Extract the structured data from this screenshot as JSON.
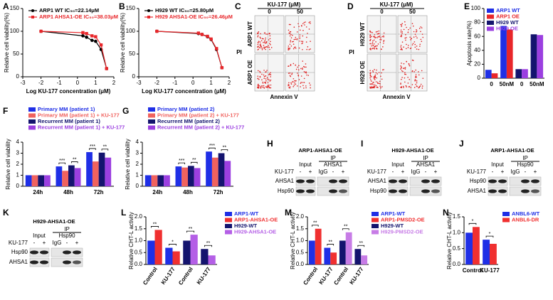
{
  "chart_data": [
    {
      "type": "line",
      "label": "A",
      "xlabel": "Log KU-177 concentration (μM)",
      "ylabel": "Relative cell viability(%)",
      "x": [
        -2,
        0.3,
        0.5,
        0.8,
        1,
        1.3,
        1.6
      ],
      "xlim": [
        -3,
        2
      ],
      "xticks": [
        -3,
        -2,
        -1,
        0,
        1,
        2
      ],
      "ylim": [
        0,
        150
      ],
      "yticks": [
        0,
        50,
        100,
        150
      ],
      "series": [
        {
          "name": "ARP1 WT IC₅₀=22.14μM",
          "color": "#000000",
          "marker": "circle",
          "values": [
            100,
            90,
            87,
            80,
            78,
            60,
            18
          ]
        },
        {
          "name": "ARP1 AHSA1-OE IC₅₀=38.03μM",
          "color": "#e8262a",
          "marker": "square",
          "values": [
            100,
            97,
            95,
            90,
            88,
            70,
            18
          ]
        }
      ]
    },
    {
      "type": "line",
      "label": "B",
      "xlabel": "Log KU-177 concentration (μM)",
      "ylabel": "Relative cell viability(%)",
      "x": [
        -2,
        0.3,
        0.5,
        0.8,
        1,
        1.3,
        1.6
      ],
      "xlim": [
        -3,
        2
      ],
      "xticks": [
        -3,
        -2,
        -1,
        0,
        1,
        2
      ],
      "ylim": [
        0,
        150
      ],
      "yticks": [
        0,
        50,
        100,
        150
      ],
      "series": [
        {
          "name": "H929 WT IC₅₀=25.80μM",
          "color": "#000000",
          "marker": "circle",
          "values": [
            100,
            95,
            93,
            88,
            82,
            60,
            20
          ]
        },
        {
          "name": "H929 AHSA1-OE IC₅₀=26.46μM",
          "color": "#e8262a",
          "marker": "square",
          "values": [
            100,
            96,
            93,
            89,
            83,
            62,
            20
          ]
        }
      ]
    },
    {
      "type": "bar",
      "label": "E",
      "ylabel": "Apoptosis rate(%)",
      "categories": [
        "0",
        "50nM",
        "0",
        "50nM"
      ],
      "ylim": [
        0,
        100
      ],
      "yticks": [
        0,
        20,
        40,
        60,
        80,
        100
      ],
      "series": [
        {
          "name": "ARP1 WT",
          "color": "#1f2fe6",
          "values": [
            12,
            75,
            null,
            null
          ]
        },
        {
          "name": "ARP1 OE",
          "color": "#e8262a",
          "values": [
            7,
            70,
            null,
            null
          ]
        },
        {
          "name": "H929 WT",
          "color": "#14146e",
          "values": [
            null,
            null,
            13,
            63
          ]
        },
        {
          "name": "H929 OE",
          "color": "#9b3fe0",
          "values": [
            null,
            null,
            13,
            62
          ]
        }
      ]
    },
    {
      "type": "bar",
      "label": "F",
      "ylabel": "Relative cell viability",
      "categories": [
        "24h",
        "48h",
        "72h"
      ],
      "ylim": [
        0,
        4
      ],
      "yticks": [
        0,
        1,
        2,
        3,
        4
      ],
      "annotations": [
        "***",
        "**",
        "***",
        "**"
      ],
      "series": [
        {
          "name": "Primary MM (patient 1)",
          "color": "#1f2fe6",
          "values": [
            1,
            1.8,
            3.1
          ]
        },
        {
          "name": "Primary MM (patient 1) + KU-177",
          "color": "#f0625e",
          "values": [
            1,
            1.4,
            2.25
          ]
        },
        {
          "name": "Recurrent MM (patient 1)",
          "color": "#14146e",
          "values": [
            1,
            1.9,
            3.05
          ]
        },
        {
          "name": "Recurrent MM (patient 1) + KU-177",
          "color": "#9b3fe0",
          "values": [
            1,
            1.65,
            2.6
          ]
        }
      ]
    },
    {
      "type": "bar",
      "label": "G",
      "ylabel": "Relative cell viability",
      "categories": [
        "24h",
        "48h",
        "72h"
      ],
      "ylim": [
        0,
        4
      ],
      "yticks": [
        0,
        1,
        2,
        3,
        4
      ],
      "annotations": [
        "***",
        "**",
        "***",
        "**"
      ],
      "series": [
        {
          "name": "Primary MM (patient 2)",
          "color": "#1f2fe6",
          "values": [
            1,
            1.8,
            3.15
          ]
        },
        {
          "name": "Primary MM (patient 2) + KU-177",
          "color": "#f0625e",
          "values": [
            1,
            1.7,
            2.6
          ]
        },
        {
          "name": "Recurrent MM (patient 2)",
          "color": "#14146e",
          "values": [
            1,
            1.85,
            3.0
          ]
        },
        {
          "name": "Recurrent MM (patient 2) + KU-177",
          "color": "#9b3fe0",
          "values": [
            1,
            1.65,
            2.3
          ]
        }
      ]
    },
    {
      "type": "bar",
      "label": "L",
      "ylabel": "Relative CHT-L activity",
      "categories": [
        "Control",
        "KU-177",
        "Control",
        "KU-177"
      ],
      "ylim": [
        0,
        2
      ],
      "yticks": [
        {
          "value": 0,
          "label": "0.0"
        },
        0.5,
        {
          "value": 1,
          "label": "1.0"
        },
        1.5,
        {
          "value": 2,
          "label": "2.0"
        }
      ],
      "annotations": [
        "**",
        "*",
        "**",
        "**"
      ],
      "series": [
        {
          "name": "ARP1-WT",
          "color": "#1f2fe6",
          "values": [
            1.0,
            0.7,
            null,
            null
          ]
        },
        {
          "name": "ARP1-AHSA1-OE",
          "color": "#f03030",
          "values": [
            1.45,
            0.55,
            null,
            null
          ]
        },
        {
          "name": "H929-WT",
          "color": "#14146e",
          "values": [
            null,
            null,
            1.0,
            0.65
          ]
        },
        {
          "name": "H929-AHSA1-OE",
          "color": "#b45fe6",
          "values": [
            null,
            null,
            1.25,
            0.38
          ]
        }
      ]
    },
    {
      "type": "bar",
      "label": "M",
      "ylabel": "Relative CHT-L activity",
      "categories": [
        "Control",
        "KU-177",
        "Control",
        "KU-177"
      ],
      "ylim": [
        0,
        2
      ],
      "yticks": [
        {
          "value": 0,
          "label": "0.0"
        },
        0.5,
        {
          "value": 1,
          "label": "1.0"
        },
        1.5,
        {
          "value": 2,
          "label": "2.0"
        }
      ],
      "annotations": [
        "**",
        "**",
        "**",
        "**"
      ],
      "series": [
        {
          "name": "ARP1-WT",
          "color": "#1f2fe6",
          "values": [
            1.0,
            0.7,
            null,
            null
          ]
        },
        {
          "name": "ARP1-PMSD2-OE",
          "color": "#f03030",
          "values": [
            1.5,
            0.5,
            null,
            null
          ]
        },
        {
          "name": "H929-WT",
          "color": "#14146e",
          "values": [
            null,
            null,
            1.0,
            0.65
          ]
        },
        {
          "name": "H929-PMSD2-OE",
          "color": "#c77ce6",
          "values": [
            null,
            null,
            1.35,
            0.38
          ]
        }
      ]
    },
    {
      "type": "bar",
      "label": "N",
      "ylabel": "Relative CHT-L activity",
      "categories": [
        "Control",
        "KU-177"
      ],
      "ylim": [
        0,
        1.5
      ],
      "yticks": [
        {
          "value": 0,
          "label": "0.0"
        },
        0.5,
        {
          "value": 1,
          "label": "1.0"
        },
        1.5
      ],
      "annotations": [
        "*",
        "*"
      ],
      "series": [
        {
          "name": "ANBL6-WT",
          "color": "#1f2fe6",
          "values": [
            1.0,
            0.78
          ]
        },
        {
          "name": "ANBL6-DR",
          "color": "#f03030",
          "values": [
            1.18,
            0.65
          ]
        }
      ]
    }
  ],
  "flow_panels": [
    {
      "label": "C",
      "header": "KU-177 (μM)",
      "columns": [
        "0",
        "50"
      ],
      "rows": [
        "ARP1 WT",
        "ARP1 OE"
      ],
      "ylabel": "PI",
      "xlabel": "Annexin V"
    },
    {
      "label": "D",
      "header": "KU-177 (μM)",
      "columns": [
        "0",
        "50"
      ],
      "rows": [
        "H929 WT",
        "H929 OE"
      ],
      "ylabel": "PI",
      "xlabel": "Annexin V"
    }
  ],
  "blot_panels": [
    {
      "label": "H",
      "title": "ARP1-AHSA1-OE",
      "input": "Input",
      "ip": "IP",
      "ip_antibody": "AHSA1",
      "treatment": "KU-177",
      "lanes": [
        "-",
        "+",
        "IgG",
        "-",
        "+"
      ],
      "rows": [
        "AHSA1",
        "Hsp90"
      ]
    },
    {
      "label": "I",
      "title": "H929-AHSA1-OE",
      "input": "Input",
      "ip": "IP",
      "ip_antibody": "AHSA1",
      "treatment": "KU-177",
      "lanes": [
        "-",
        "+",
        "IgG",
        "-",
        "+"
      ],
      "rows": [
        "AHSA1",
        "Hsp90"
      ]
    },
    {
      "label": "J",
      "title": "ARP1-AHSA1-OE",
      "input": "Input",
      "ip": "IP",
      "ip_antibody": "Hsp90",
      "treatment": "KU-177",
      "lanes": [
        "-",
        "+",
        "IgG",
        "-",
        "+"
      ],
      "rows": [
        "Hsp90",
        "AHSA1"
      ]
    },
    {
      "label": "K",
      "title": "H929-AHSA1-OE",
      "input": "Input",
      "ip": "IP",
      "ip_antibody": "Hsp90",
      "treatment": "KU-177",
      "lanes": [
        "-",
        "+",
        "IgG",
        "-",
        "+"
      ],
      "rows": [
        "Hsp90",
        "AHSA1"
      ]
    }
  ]
}
